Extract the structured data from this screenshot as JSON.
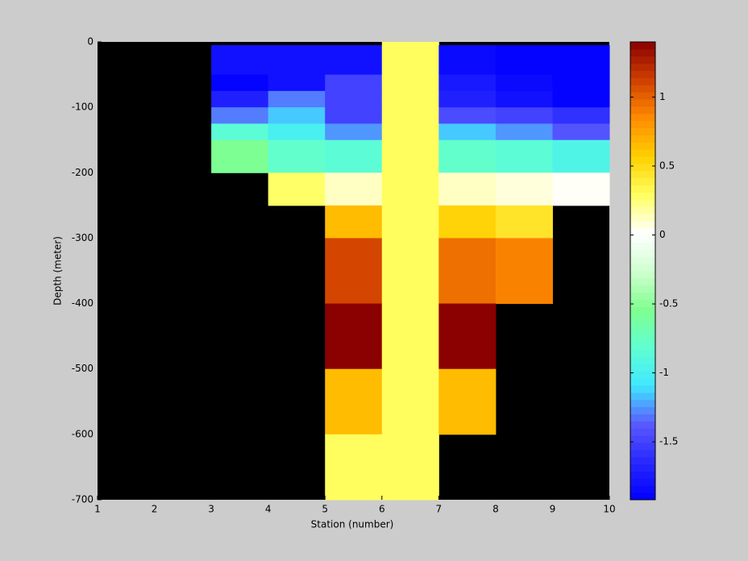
{
  "chart_data": {
    "type": "heatmap",
    "xlabel": "Station (number)",
    "ylabel": "Depth (meter)",
    "xlim": [
      1,
      10
    ],
    "ylim": [
      -700,
      0
    ],
    "xticks": [
      1,
      2,
      3,
      4,
      5,
      6,
      7,
      8,
      9,
      10
    ],
    "yticks": [
      0,
      -100,
      -200,
      -300,
      -400,
      -500,
      -600,
      -700
    ],
    "x_edges": [
      1,
      2,
      3,
      4,
      5,
      6,
      7,
      8,
      9,
      10
    ],
    "y_edges": [
      0,
      -5,
      -50,
      -75,
      -100,
      -125,
      -150,
      -200,
      -250,
      -300,
      -400,
      -500,
      -600,
      -700
    ],
    "values": [
      [
        null,
        null,
        null,
        null,
        null,
        0.3,
        null,
        null,
        null
      ],
      [
        null,
        null,
        -1.8,
        -1.8,
        -1.8,
        0.3,
        -1.85,
        -1.9,
        -1.9
      ],
      [
        null,
        null,
        -1.9,
        -1.8,
        -1.5,
        0.3,
        -1.75,
        -1.85,
        -1.9
      ],
      [
        null,
        null,
        -1.7,
        -1.3,
        -1.5,
        0.3,
        -1.7,
        -1.8,
        -1.9
      ],
      [
        null,
        null,
        -1.3,
        -1.15,
        -1.5,
        0.3,
        -1.45,
        -1.5,
        -1.6
      ],
      [
        null,
        null,
        -0.85,
        -1.0,
        -1.25,
        0.3,
        -1.15,
        -1.25,
        -1.4
      ],
      [
        null,
        null,
        -0.55,
        -0.8,
        -0.85,
        0.3,
        -0.8,
        -0.85,
        -0.95
      ],
      [
        null,
        null,
        null,
        0.28,
        0.12,
        0.3,
        0.12,
        0.08,
        0.03
      ],
      [
        null,
        null,
        null,
        null,
        0.65,
        0.3,
        0.55,
        0.45,
        null
      ],
      [
        null,
        null,
        null,
        null,
        1.1,
        0.3,
        0.95,
        0.88,
        null
      ],
      [
        null,
        null,
        null,
        null,
        1.4,
        0.3,
        1.4,
        null,
        null
      ],
      [
        null,
        null,
        null,
        null,
        0.65,
        0.3,
        0.65,
        null,
        null
      ],
      [
        null,
        null,
        null,
        null,
        0.3,
        0.3,
        null,
        null,
        null
      ]
    ],
    "background": "#000000",
    "clim": [
      -1.92,
      1.4
    ],
    "colorbar_ticks": [
      1,
      0.5,
      0,
      -0.5,
      -1,
      -1.5
    ],
    "colormap": [
      "#0000ff",
      "#2828ff",
      "#5a5aff",
      "#40e8ff",
      "#60ffd0",
      "#80ff90",
      "#d0ffd0",
      "#ffffff",
      "#ffff60",
      "#ffd000",
      "#ff8c00",
      "#d04000",
      "#8b0000"
    ]
  }
}
